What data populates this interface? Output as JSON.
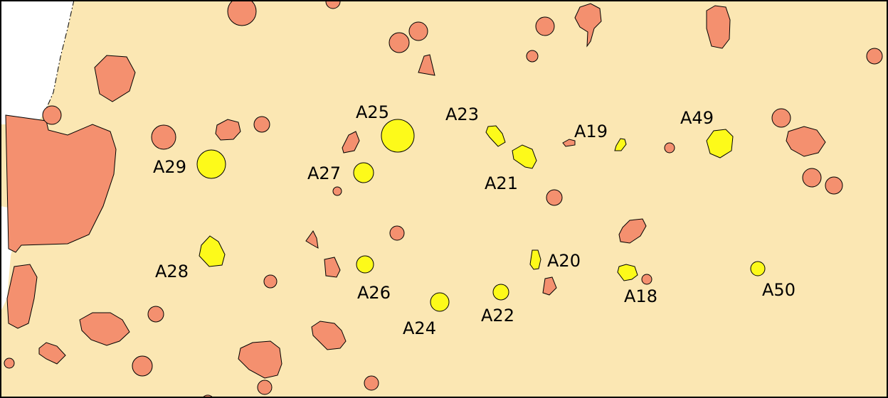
{
  "map": {
    "colors": {
      "background": "#fbe7b3",
      "outside": "#ffffff",
      "unselected_feature": "#f4906f",
      "selected_feature": "#fdfa1a",
      "outline": "#000000",
      "frame": "#000000"
    },
    "selected_features": [
      {
        "id": "A18",
        "label": "A18"
      },
      {
        "id": "A19",
        "label": "A19"
      },
      {
        "id": "A20",
        "label": "A20"
      },
      {
        "id": "A21",
        "label": "A21"
      },
      {
        "id": "A22",
        "label": "A22"
      },
      {
        "id": "A23",
        "label": "A23"
      },
      {
        "id": "A24",
        "label": "A24"
      },
      {
        "id": "A25",
        "label": "A25"
      },
      {
        "id": "A26",
        "label": "A26"
      },
      {
        "id": "A27",
        "label": "A27"
      },
      {
        "id": "A28",
        "label": "A28"
      },
      {
        "id": "A29",
        "label": "A29"
      },
      {
        "id": "A49",
        "label": "A49"
      },
      {
        "id": "A50",
        "label": "A50"
      }
    ]
  }
}
